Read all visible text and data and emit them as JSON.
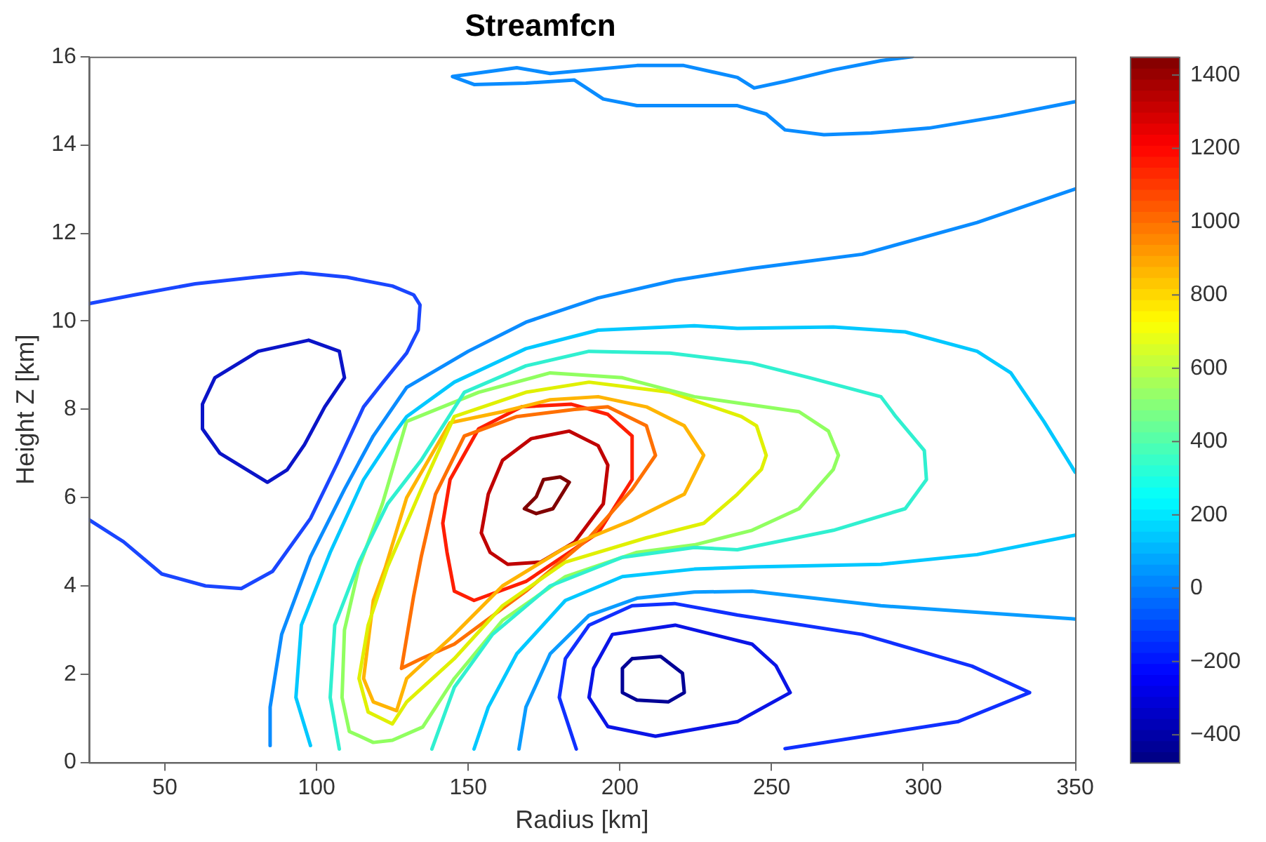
{
  "chart_data": {
    "type": "line",
    "title": "Streamfcn",
    "xlabel": "Radius [km]",
    "ylabel": "Height Z [km]",
    "xlim": [
      25,
      350
    ],
    "xticks": [
      50,
      100,
      150,
      200,
      250,
      300,
      350
    ],
    "ylim": [
      0,
      16
    ],
    "yticks": [
      0,
      2,
      4,
      6,
      8,
      10,
      12,
      14,
      16
    ],
    "clim": [
      -475,
      1450
    ],
    "cticks": [
      -400,
      -200,
      0,
      200,
      400,
      600,
      800,
      1000,
      1200,
      1400
    ],
    "grid": false,
    "legend": false,
    "marker": "none",
    "line_style": "solid",
    "series": [
      {
        "color": "#1a46ff",
        "x": [
          25,
          40,
          60,
          80,
          95,
          110,
          125,
          132,
          134.1,
          133.5,
          129.7,
          121.7,
          115.5,
          107,
          98,
          85.5,
          75.2,
          63.4,
          49,
          36.4,
          25
        ],
        "values": [
          10.4,
          10.6,
          10.85,
          11.0,
          11.1,
          11.0,
          10.8,
          10.6,
          10.37,
          9.8,
          9.28,
          8.6,
          8.06,
          6.8,
          5.53,
          4.33,
          3.94,
          4.0,
          4.27,
          5.0,
          5.5
        ]
      },
      {
        "color": "#0a14c8",
        "x": [
          97.4,
          107.5,
          109.2,
          102.7,
          96,
          90.3,
          83.8,
          68.1,
          62.4,
          62.4,
          66.5,
          80.8,
          97.4,
          107.5
        ],
        "values": [
          9.57,
          9.32,
          8.72,
          8.06,
          7.2,
          6.63,
          6.35,
          7.01,
          7.56,
          8.12,
          8.72,
          9.32,
          9.57,
          9.32
        ]
      },
      {
        "color": "#0a8cff",
        "x": [
          84.7,
          84.7,
          88.5,
          98,
          109.2,
          118.7,
          129.7,
          150,
          169,
          192.8,
          218.2,
          243.5,
          279.8,
          317.7,
          350
        ],
        "values": [
          0.38,
          1.25,
          2.9,
          4.66,
          6.19,
          7.4,
          8.5,
          9.32,
          9.98,
          10.53,
          10.93,
          11.2,
          11.52,
          12.24,
          13.0
        ]
      },
      {
        "color": "#0a8cff",
        "x": [
          296.4,
          286,
          270.3,
          254.4,
          244.2,
          238.7,
          221,
          205.6,
          177,
          166,
          144.8,
          151.9,
          169,
          185,
          194.5,
          205.6,
          238.7,
          248.2,
          254.4,
          267.2,
          282.8,
          301.8,
          325.5,
          350
        ],
        "values": [
          16.0,
          15.91,
          15.7,
          15.44,
          15.29,
          15.53,
          15.8,
          15.8,
          15.62,
          15.75,
          15.55,
          15.37,
          15.4,
          15.47,
          15.04,
          14.89,
          14.89,
          14.7,
          14.34,
          14.23,
          14.27,
          14.38,
          14.65,
          14.98
        ]
      },
      {
        "color": "#0a9cff",
        "x": [
          166.7,
          169,
          177,
          189.8,
          205.6,
          224.5,
          243.5,
          286,
          350
        ],
        "values": [
          0.3,
          1.25,
          2.46,
          3.33,
          3.72,
          3.86,
          3.88,
          3.55,
          3.25
        ]
      },
      {
        "color": "#00c8ff",
        "x": [
          98,
          93.2,
          95,
          104.5,
          115.5,
          125,
          129.7,
          145.4,
          169,
          192.8,
          224.5,
          238.7,
          270.3,
          294,
          317.7,
          328.8,
          339.7,
          350
        ],
        "values": [
          0.38,
          1.47,
          3.11,
          4.76,
          6.41,
          7.4,
          7.84,
          8.62,
          9.38,
          9.8,
          9.9,
          9.84,
          9.87,
          9.76,
          9.32,
          8.83,
          7.73,
          6.58
        ]
      },
      {
        "color": "#00c8ff",
        "x": [
          151.9,
          156.6,
          166,
          182,
          200.8,
          224.5,
          243.5,
          286,
          317.7,
          350
        ],
        "values": [
          0.3,
          1.25,
          2.46,
          3.67,
          4.21,
          4.38,
          4.43,
          4.49,
          4.71,
          5.15
        ]
      },
      {
        "color": "#30f0d0",
        "x": [
          107.5,
          104.5,
          106,
          114,
          123.4,
          134.5,
          148.7,
          169,
          189.8,
          216.5,
          243.5,
          262.5,
          286,
          290.9,
          300.3,
          301,
          294,
          270.3,
          238.7,
          224.5,
          200.8,
          177,
          158,
          145.4,
          138
        ],
        "values": [
          0.3,
          1.47,
          3.11,
          4.54,
          5.86,
          6.85,
          8.39,
          8.99,
          9.32,
          9.28,
          9.05,
          8.72,
          8.29,
          7.84,
          7.07,
          6.41,
          5.75,
          5.26,
          4.82,
          4.87,
          4.65,
          4.0,
          2.9,
          1.7,
          0.3
        ]
      },
      {
        "color": "#90ff60",
        "x": [
          129.7,
          153.4,
          177,
          200.8,
          224.5,
          259,
          268.7,
          272,
          270.3,
          259,
          243.5,
          224.5,
          205.6,
          182,
          161.3,
          145.4,
          135,
          125,
          118.7,
          110.8,
          108.4,
          109.2,
          114,
          121.7,
          129.7,
          153.4
        ],
        "values": [
          7.73,
          8.39,
          8.83,
          8.72,
          8.29,
          7.95,
          7.51,
          6.96,
          6.64,
          5.75,
          5.26,
          4.93,
          4.76,
          4.21,
          3.22,
          1.9,
          0.8,
          0.5,
          0.45,
          0.7,
          1.47,
          3.0,
          4.43,
          5.86,
          7.73,
          8.39
        ]
      },
      {
        "color": "#e0f000",
        "x": [
          145.4,
          169,
          189.8,
          216.5,
          240,
          245,
          248.2,
          246.6,
          238.7,
          227.6,
          208.7,
          182,
          161.3,
          145.4,
          129.7,
          125,
          117,
          114,
          117,
          123.4,
          134.5,
          145.4,
          169
        ],
        "values": [
          7.84,
          8.39,
          8.62,
          8.39,
          7.84,
          7.63,
          6.96,
          6.64,
          6.08,
          5.42,
          5.09,
          4.54,
          3.55,
          2.35,
          1.37,
          0.87,
          1.14,
          1.9,
          3.11,
          4.43,
          6.19,
          7.84,
          8.39
        ]
      },
      {
        "color": "#ffb400",
        "x": [
          161.3,
          177,
          192.8,
          208.7,
          221.2,
          227.6,
          221.2,
          204,
          182,
          161.3,
          145.4,
          129.7,
          126.4,
          118.7,
          115.5,
          118.7,
          122.6,
          129.7,
          144,
          161.3,
          177
        ],
        "values": [
          7.95,
          8.22,
          8.29,
          8.06,
          7.63,
          6.96,
          6.08,
          5.49,
          4.87,
          4.0,
          2.9,
          1.9,
          1.17,
          1.37,
          1.9,
          3.67,
          4.4,
          6.0,
          7.7,
          7.95,
          8.22
        ]
      },
      {
        "color": "#ff7000",
        "x": [
          128,
          134.5,
          145.4,
          169,
          189.8,
          204,
          211.7,
          208.7,
          196,
          185,
          166,
          148.7,
          139.2,
          134.5,
          132,
          128,
          134.5
        ],
        "values": [
          2.13,
          2.35,
          2.68,
          3.88,
          5.09,
          6.19,
          6.96,
          7.63,
          8.06,
          8.0,
          7.84,
          7.4,
          6.08,
          4.66,
          3.77,
          2.13,
          2.35
        ]
      },
      {
        "color": "#ff1e00",
        "x": [
          143,
          145.4,
          151.9,
          169,
          192.8,
          204,
          204,
          196,
          184,
          167.6,
          153.4,
          144,
          141.6,
          143,
          145.4
        ],
        "values": [
          4.76,
          3.88,
          3.67,
          4.1,
          5.2,
          6.41,
          7.4,
          7.89,
          8.12,
          8.06,
          7.56,
          6.41,
          5.42,
          4.76,
          3.88
        ]
      },
      {
        "color": "#c00000",
        "x": [
          154.3,
          157.2,
          163,
          173.8,
          185,
          194.5,
          196,
          192.8,
          183.3,
          170.8,
          161.3,
          156.6,
          154.3,
          157.2
        ],
        "values": [
          5.2,
          4.76,
          4.49,
          4.54,
          4.99,
          5.86,
          6.74,
          7.18,
          7.51,
          7.34,
          6.85,
          6.08,
          5.2,
          4.76
        ]
      },
      {
        "color": "#800000",
        "x": [
          168.5,
          172.4,
          177.9,
          183.3,
          180.3,
          174.8,
          172.4,
          168.5,
          172.4
        ],
        "values": [
          5.75,
          5.64,
          5.75,
          6.35,
          6.47,
          6.41,
          6.02,
          5.75,
          5.64
        ]
      },
      {
        "color": "#1030ff",
        "x": [
          185.6,
          180,
          182,
          189.8,
          204,
          218,
          238.7,
          279.8,
          316,
          335,
          311.3,
          254.4
        ],
        "values": [
          0.3,
          1.47,
          2.35,
          3.11,
          3.55,
          3.6,
          3.34,
          2.9,
          2.18,
          1.58,
          0.92,
          0.31
        ]
      },
      {
        "color": "#0a14e6",
        "x": [
          197.5,
          218.2,
          243.5,
          251.4,
          256.1,
          238.7,
          211.7,
          196,
          189.8,
          191.3,
          197.5,
          218.2
        ],
        "values": [
          2.9,
          3.11,
          2.68,
          2.19,
          1.58,
          0.92,
          0.59,
          0.81,
          1.47,
          2.13,
          2.9,
          3.11
        ]
      },
      {
        "color": "#000096",
        "x": [
          200.8,
          204,
          213.4,
          220.6,
          221.2,
          215.9,
          205.6,
          200.8,
          200.8,
          204
        ],
        "values": [
          2.13,
          2.35,
          2.4,
          2.02,
          1.58,
          1.37,
          1.41,
          1.58,
          2.13,
          2.35
        ]
      }
    ]
  }
}
